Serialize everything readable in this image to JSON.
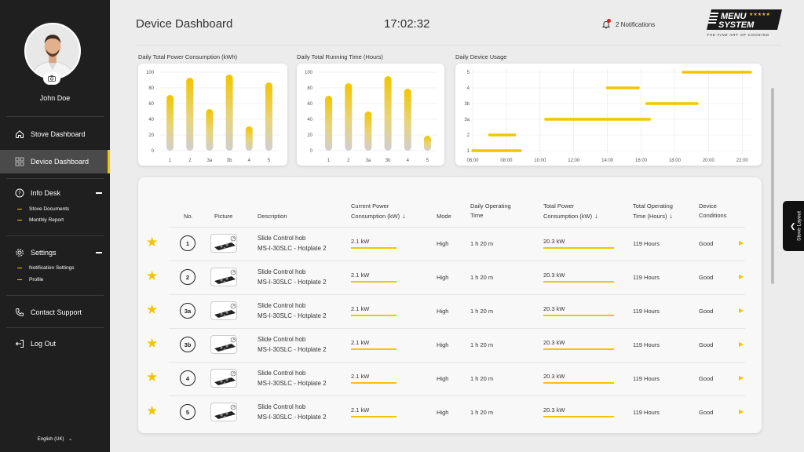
{
  "sidebar": {
    "username": "John Doe",
    "nav": {
      "stove_dashboard": "Stove Dashboard",
      "device_dashboard": "Device Dashboard",
      "info_desk": "Info Desk",
      "stove_documents": "Stove Documents",
      "monthly_report": "Monthly Report",
      "settings": "Settings",
      "notification_settings": "Notification Settings",
      "profile": "Profile",
      "contact_support": "Contact Support",
      "log_out": "Log Out"
    },
    "language": "English (UK)"
  },
  "header": {
    "title": "Device Dashboard",
    "clock": "17:02:32",
    "notifications": "2 Notifications",
    "logo_line1": "MENU",
    "logo_line2": "SYSTEM",
    "logo_tagline": "THE FINE ART OF COOKING"
  },
  "colors": {
    "accent": "#f2c500",
    "sidebar": "#1f1f1f",
    "active_nav": "#4a4a4a"
  },
  "chart_data": [
    {
      "type": "bar",
      "title": "Daily Total Power Consumption (kWh)",
      "categories": [
        "1",
        "2",
        "3a",
        "3b",
        "4",
        "5"
      ],
      "values": [
        71,
        93,
        53,
        97,
        31,
        87
      ],
      "ylim": [
        0,
        100
      ],
      "yticks": [
        "0",
        "20",
        "40",
        "60",
        "80",
        "100"
      ]
    },
    {
      "type": "bar",
      "title": "Daily Total Running Time (Hours)",
      "categories": [
        "1",
        "2",
        "3a",
        "3b",
        "4",
        "5"
      ],
      "values": [
        70,
        86,
        50,
        95,
        79,
        19
      ],
      "ylim": [
        0,
        100
      ],
      "yticks": [
        "0",
        "20",
        "40",
        "60",
        "80",
        "100"
      ]
    },
    {
      "type": "timeline",
      "title": "Daily Device Usage",
      "categories": [
        "1",
        "2",
        "3a",
        "3b",
        "4",
        "5"
      ],
      "xticks": [
        "06:00",
        "08:00",
        "10:00",
        "12:00",
        "14:00",
        "16:00",
        "18:00",
        "20:00",
        "22:00"
      ],
      "xlim": [
        "06:00",
        "22:30"
      ],
      "segments": [
        {
          "device": "1",
          "start": "06:00",
          "end": "08:50"
        },
        {
          "device": "2",
          "start": "07:00",
          "end": "08:30"
        },
        {
          "device": "3a",
          "start": "10:20",
          "end": "16:30"
        },
        {
          "device": "3b",
          "start": "16:20",
          "end": "19:20"
        },
        {
          "device": "4",
          "start": "14:00",
          "end": "15:50"
        },
        {
          "device": "5",
          "start": "18:30",
          "end": "22:30"
        }
      ]
    }
  ],
  "table": {
    "headers": {
      "no": "No.",
      "picture": "Picture",
      "description": "Description",
      "current_power_1": "Current Power",
      "current_power_2": "Consumption (kW)",
      "mode": "Mode",
      "daily_time_1": "Daily Operating",
      "daily_time_2": "Time",
      "total_power_1": "Total Power",
      "total_power_2": "Consumption (kW)",
      "total_time_1": "Total Operating",
      "total_time_2": "Time (Hours)",
      "condition_1": "Device",
      "condition_2": "Conditions"
    },
    "rows": [
      {
        "no": "1",
        "desc1": "Slide Control hob",
        "desc2": "MS-I-30SLC - Hotplate 2",
        "current": "2.1 kW",
        "mode": "High",
        "daily": "1 h 20 m",
        "total_power": "20.3 kW",
        "total_time": "119 Hours",
        "condition": "Good"
      },
      {
        "no": "2",
        "desc1": "Slide Control hob",
        "desc2": "MS-I-30SLC - Hotplate 2",
        "current": "2.1 kW",
        "mode": "High",
        "daily": "1 h 20 m",
        "total_power": "20.3 kW",
        "total_time": "119 Hours",
        "condition": "Good"
      },
      {
        "no": "3a",
        "desc1": "Slide Control hob",
        "desc2": "MS-I-30SLC - Hotplate 2",
        "current": "2.1 kW",
        "mode": "High",
        "daily": "1 h 20 m",
        "total_power": "20.3 kW",
        "total_time": "119 Hours",
        "condition": "Good"
      },
      {
        "no": "3b",
        "desc1": "Slide Control hob",
        "desc2": "MS-I-30SLC - Hotplate 2",
        "current": "2.1 kW",
        "mode": "High",
        "daily": "1 h 20 m",
        "total_power": "20.3 kW",
        "total_time": "119 Hours",
        "condition": "Good"
      },
      {
        "no": "4",
        "desc1": "Slide Control hob",
        "desc2": "MS-I-30SLC - Hotplate 2",
        "current": "2.1 kW",
        "mode": "High",
        "daily": "1 h 20 m",
        "total_power": "20.3 kW",
        "total_time": "119 Hours",
        "condition": "Good"
      },
      {
        "no": "5",
        "desc1": "Slide Control hob",
        "desc2": "MS-I-30SLC - Hotplate 2",
        "current": "2.1 kW",
        "mode": "High",
        "daily": "1 h 20 m",
        "total_power": "20.3 kW",
        "total_time": "119 Hours",
        "condition": "Good"
      }
    ]
  },
  "stove_layout_tab": "Stove Layout",
  "icons": [
    "home-icon",
    "grid-icon",
    "help-icon",
    "gear-icon",
    "phone-icon",
    "logout-icon",
    "bell-icon",
    "camera-icon",
    "star-icon",
    "play-icon",
    "sort-arrow-icon",
    "chevron-left-icon"
  ]
}
